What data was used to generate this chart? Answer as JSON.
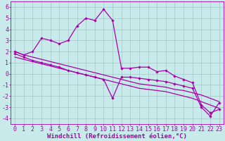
{
  "xlabel": "Windchill (Refroidissement éolien,°C)",
  "background_color": "#c8eaea",
  "grid_color": "#a0c8c8",
  "line_color": "#aa00aa",
  "x": [
    0,
    1,
    2,
    3,
    4,
    5,
    6,
    7,
    8,
    9,
    10,
    11,
    12,
    13,
    14,
    15,
    16,
    17,
    18,
    19,
    20,
    21,
    22,
    23
  ],
  "y_main": [
    2.0,
    1.7,
    2.0,
    3.2,
    3.0,
    2.7,
    3.0,
    4.3,
    5.0,
    4.8,
    5.8,
    4.8,
    0.5,
    0.5,
    0.6,
    0.6,
    0.2,
    0.3,
    -0.2,
    -0.5,
    -0.8,
    -2.8,
    -3.5,
    -3.2
  ],
  "y_low": [
    1.8,
    1.5,
    1.2,
    1.0,
    0.8,
    0.6,
    0.3,
    0.1,
    -0.1,
    -0.3,
    -0.5,
    -2.2,
    -0.3,
    -0.3,
    -0.4,
    -0.5,
    -0.6,
    -0.7,
    -0.9,
    -1.1,
    -1.3,
    -3.0,
    -3.8,
    -2.6
  ],
  "y_trend1": [
    2.0,
    1.7,
    1.5,
    1.3,
    1.1,
    0.9,
    0.7,
    0.5,
    0.3,
    0.1,
    -0.1,
    -0.3,
    -0.5,
    -0.7,
    -0.9,
    -1.0,
    -1.1,
    -1.2,
    -1.4,
    -1.5,
    -1.7,
    -1.9,
    -2.2,
    -2.5
  ],
  "y_trend2": [
    1.5,
    1.3,
    1.1,
    0.9,
    0.7,
    0.5,
    0.3,
    0.1,
    -0.1,
    -0.3,
    -0.5,
    -0.7,
    -0.9,
    -1.1,
    -1.3,
    -1.4,
    -1.5,
    -1.6,
    -1.8,
    -2.0,
    -2.2,
    -2.5,
    -2.8,
    -3.1
  ],
  "ylim": [
    -4.5,
    6.5
  ],
  "xlim": [
    -0.5,
    23.5
  ],
  "yticks": [
    -4,
    -3,
    -2,
    -1,
    0,
    1,
    2,
    3,
    4,
    5,
    6
  ],
  "xticks": [
    0,
    1,
    2,
    3,
    4,
    5,
    6,
    7,
    8,
    9,
    10,
    11,
    12,
    13,
    14,
    15,
    16,
    17,
    18,
    19,
    20,
    21,
    22,
    23
  ],
  "font_size": 6,
  "xlabel_fontsize": 6.5,
  "line_width": 0.9,
  "marker_size": 2.2
}
